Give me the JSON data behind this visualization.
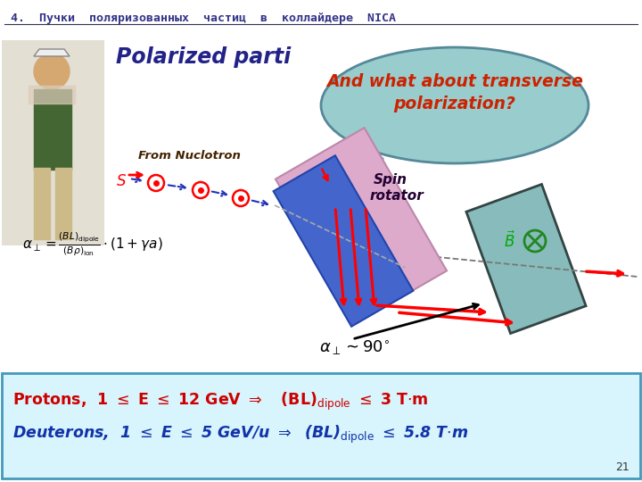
{
  "title": "4.  Пучки  поляризованных  частиц  в  коллайдере  NICA",
  "polarized_text": "Polarized parti",
  "bubble_text1": "And what about transverse",
  "bubble_text2": "polarization?",
  "from_text": "From Nuclotron",
  "spin_text1": "Spin",
  "spin_text2": "rotator",
  "alpha_label": "α⊥~ 90°",
  "B_label": "B",
  "page_number": "21",
  "bg_color": "#ffffff",
  "title_color": "#333388",
  "bottom_bg": "#d8f4fc",
  "bottom_border": "#4499bb",
  "text_red": "#cc0000",
  "text_blue": "#1133aa",
  "bubble_bg": "#99cccc",
  "bubble_edge": "#558899",
  "spin_pink": "#ddaacc",
  "spin_pink_edge": "#bb88aa",
  "spin_blue": "#4466cc",
  "spin_blue_edge": "#2244aa",
  "det_color": "#88bbbb",
  "det_edge": "#447766"
}
